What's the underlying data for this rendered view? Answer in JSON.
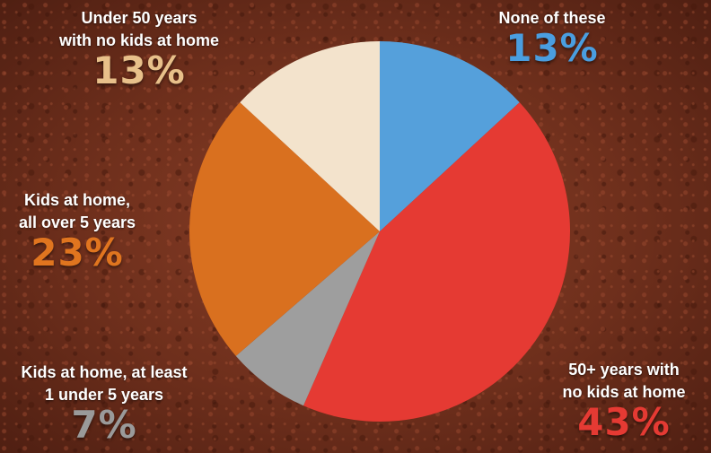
{
  "chart_data": {
    "type": "pie",
    "slices": [
      {
        "label": "None of these",
        "value": 13,
        "display": "13%",
        "color": "#55a0db"
      },
      {
        "label": "50+ years with\nno kids at home",
        "value": 43,
        "display": "43%",
        "color": "#e53a33"
      },
      {
        "label": "Kids at home, at least\n1 under 5 years",
        "value": 7,
        "display": "7%",
        "color": "#9e9e9e"
      },
      {
        "label": "Kids at home,\nall over 5 years",
        "value": 23,
        "display": "23%",
        "color": "#d9701f"
      },
      {
        "label": "Under 50 years\nwith no kids at home",
        "value": 13,
        "display": "13%",
        "color": "#f3e3cc"
      }
    ],
    "label_colors": [
      "#4a9ee0",
      "#e53a33",
      "#9a9a9a",
      "#e0751f",
      "#e8c08a"
    ]
  }
}
